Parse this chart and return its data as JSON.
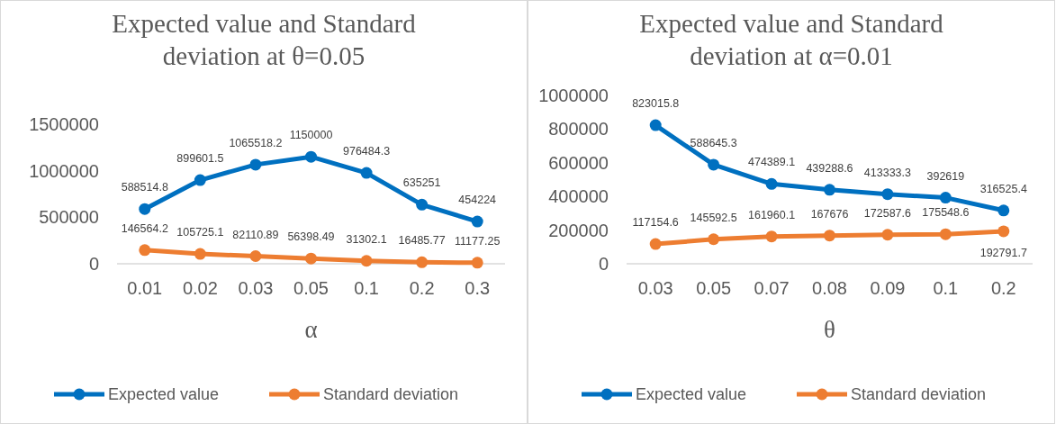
{
  "chart_data": [
    {
      "type": "line",
      "title": "Expected value and Standard deviation at θ=0.05",
      "xlabel": "α",
      "categories": [
        "0.01",
        "0.02",
        "0.03",
        "0.05",
        "0.1",
        "0.2",
        "0.3"
      ],
      "series": [
        {
          "name": "Expected value",
          "color": "#0070c0",
          "values": [
            588514.8,
            899601.5,
            1065518.2,
            1150000,
            976484.3,
            635251,
            454224
          ]
        },
        {
          "name": "Standard deviation",
          "color": "#ed7d31",
          "values": [
            146564.2,
            105725.1,
            82110.89,
            56398.49,
            31302.1,
            16485.77,
            11177.25
          ]
        }
      ],
      "ylim": [
        0,
        1500000
      ],
      "yticks": [
        0,
        500000,
        1000000,
        1500000
      ],
      "grid": false,
      "legend": "bottom",
      "marker": "circle",
      "data_labels": true
    },
    {
      "type": "line",
      "title": "Expected value and Standard deviation at α=0.01",
      "xlabel": "θ",
      "categories": [
        "0.03",
        "0.05",
        "0.07",
        "0.08",
        "0.09",
        "0.1",
        "0.2"
      ],
      "series": [
        {
          "name": "Expected value",
          "color": "#0070c0",
          "values": [
            823015.8,
            588645.3,
            474389.1,
            439288.6,
            413333.3,
            392619,
            316525.4
          ]
        },
        {
          "name": "Standard deviation",
          "color": "#ed7d31",
          "values": [
            117154.6,
            145592.5,
            161960.1,
            167676,
            172587.6,
            175548.6,
            192791.7
          ]
        }
      ],
      "ylim": [
        0,
        1000000
      ],
      "yticks": [
        0,
        200000,
        400000,
        600000,
        800000,
        1000000
      ],
      "grid": false,
      "legend": "bottom",
      "marker": "circle",
      "data_labels": true
    }
  ]
}
